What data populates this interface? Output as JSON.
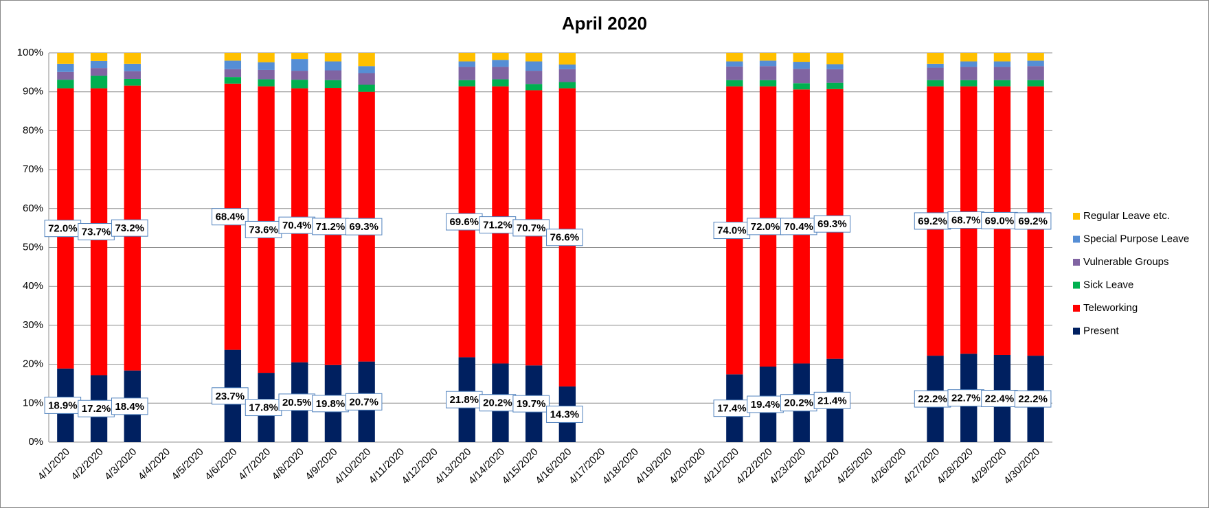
{
  "chart_data": {
    "type": "stacked-bar",
    "title": "April 2020",
    "categories": [
      "4/1/2020",
      "4/2/2020",
      "4/3/2020",
      "4/4/2020",
      "4/5/2020",
      "4/6/2020",
      "4/7/2020",
      "4/8/2020",
      "4/9/2020",
      "4/10/2020",
      "4/11/2020",
      "4/12/2020",
      "4/13/2020",
      "4/14/2020",
      "4/15/2020",
      "4/16/2020",
      "4/17/2020",
      "4/18/2020",
      "4/19/2020",
      "4/20/2020",
      "4/21/2020",
      "4/22/2020",
      "4/23/2020",
      "4/24/2020",
      "4/25/2020",
      "4/26/2020",
      "4/27/2020",
      "4/28/2020",
      "4/29/2020",
      "4/30/2020"
    ],
    "series": [
      {
        "name": "Present",
        "color": "#002060",
        "values": [
          18.9,
          17.2,
          18.4,
          null,
          null,
          23.7,
          17.8,
          20.5,
          19.8,
          20.7,
          null,
          null,
          21.8,
          20.2,
          19.7,
          14.3,
          null,
          null,
          null,
          null,
          17.4,
          19.4,
          20.2,
          21.4,
          null,
          null,
          22.2,
          22.7,
          22.4,
          22.2
        ],
        "value_labels": [
          "18.9%",
          "17.2%",
          "18.4%",
          null,
          null,
          "23.7%",
          "17.8%",
          "20.5%",
          "19.8%",
          "20.7%",
          null,
          null,
          "21.8%",
          "20.2%",
          "19.7%",
          "14.3%",
          null,
          null,
          null,
          null,
          "17.4%",
          "19.4%",
          "20.2%",
          "21.4%",
          null,
          null,
          "22.2%",
          "22.7%",
          "22.4%",
          "22.2%"
        ]
      },
      {
        "name": "Teleworking",
        "color": "#ff0000",
        "values": [
          72.0,
          73.7,
          73.2,
          null,
          null,
          68.4,
          73.6,
          70.4,
          71.2,
          69.3,
          null,
          null,
          69.6,
          71.2,
          70.7,
          76.6,
          null,
          null,
          null,
          null,
          74.0,
          72.0,
          70.4,
          69.3,
          null,
          null,
          69.2,
          68.7,
          69.0,
          69.2
        ],
        "value_labels": [
          "72.0%",
          "73.7%",
          "73.2%",
          null,
          null,
          "68.4%",
          "73.6%",
          "70.4%",
          "71.2%",
          "69.3%",
          null,
          null,
          "69.6%",
          "71.2%",
          "70.7%",
          "76.6%",
          null,
          null,
          null,
          null,
          "74.0%",
          "72.0%",
          "70.4%",
          "69.3%",
          null,
          null,
          "69.2%",
          "68.7%",
          "69.0%",
          "69.2%"
        ]
      },
      {
        "name": "Sick Leave",
        "color": "#00b050",
        "values": [
          2.2,
          3.2,
          1.7,
          null,
          null,
          1.7,
          1.8,
          2.2,
          2.0,
          1.8,
          null,
          null,
          1.6,
          1.8,
          1.6,
          1.6,
          null,
          null,
          null,
          null,
          1.6,
          1.6,
          1.6,
          1.6,
          null,
          null,
          1.6,
          1.6,
          1.6,
          1.6
        ]
      },
      {
        "name": "Vulnerable Groups",
        "color": "#8064a2",
        "values": [
          2.0,
          2.0,
          2.0,
          null,
          null,
          2.0,
          2.4,
          2.3,
          2.5,
          3.0,
          null,
          null,
          3.4,
          3.2,
          3.4,
          3.3,
          null,
          null,
          null,
          null,
          3.5,
          3.6,
          3.7,
          3.5,
          null,
          null,
          3.2,
          3.4,
          3.4,
          3.6
        ]
      },
      {
        "name": "Special Purpose Leave",
        "color": "#558ed5",
        "values": [
          2.1,
          1.8,
          1.9,
          null,
          null,
          2.2,
          2.0,
          3.0,
          2.3,
          1.8,
          null,
          null,
          1.4,
          1.8,
          2.4,
          1.2,
          null,
          null,
          null,
          null,
          1.3,
          1.4,
          1.8,
          1.3,
          null,
          null,
          1.0,
          1.4,
          1.4,
          1.4
        ]
      },
      {
        "name": "Regular Leave etc.",
        "color": "#ffc000",
        "values": [
          2.8,
          2.1,
          2.8,
          null,
          null,
          2.0,
          2.4,
          1.6,
          2.2,
          3.4,
          null,
          null,
          2.2,
          1.8,
          2.2,
          3.0,
          null,
          null,
          null,
          null,
          2.2,
          2.0,
          2.3,
          2.9,
          null,
          null,
          2.8,
          2.2,
          2.2,
          2.0
        ]
      }
    ],
    "ylim": [
      0,
      100
    ],
    "yticks": [
      {
        "value": 0,
        "label": "0%"
      },
      {
        "value": 10,
        "label": "10%"
      },
      {
        "value": 20,
        "label": "20%"
      },
      {
        "value": 30,
        "label": "30%"
      },
      {
        "value": 40,
        "label": "40%"
      },
      {
        "value": 50,
        "label": "50%"
      },
      {
        "value": 60,
        "label": "60%"
      },
      {
        "value": 70,
        "label": "70%"
      },
      {
        "value": 80,
        "label": "80%"
      },
      {
        "value": 90,
        "label": "90%"
      },
      {
        "value": 100,
        "label": "100%"
      }
    ],
    "grid": true,
    "legend": "right"
  }
}
